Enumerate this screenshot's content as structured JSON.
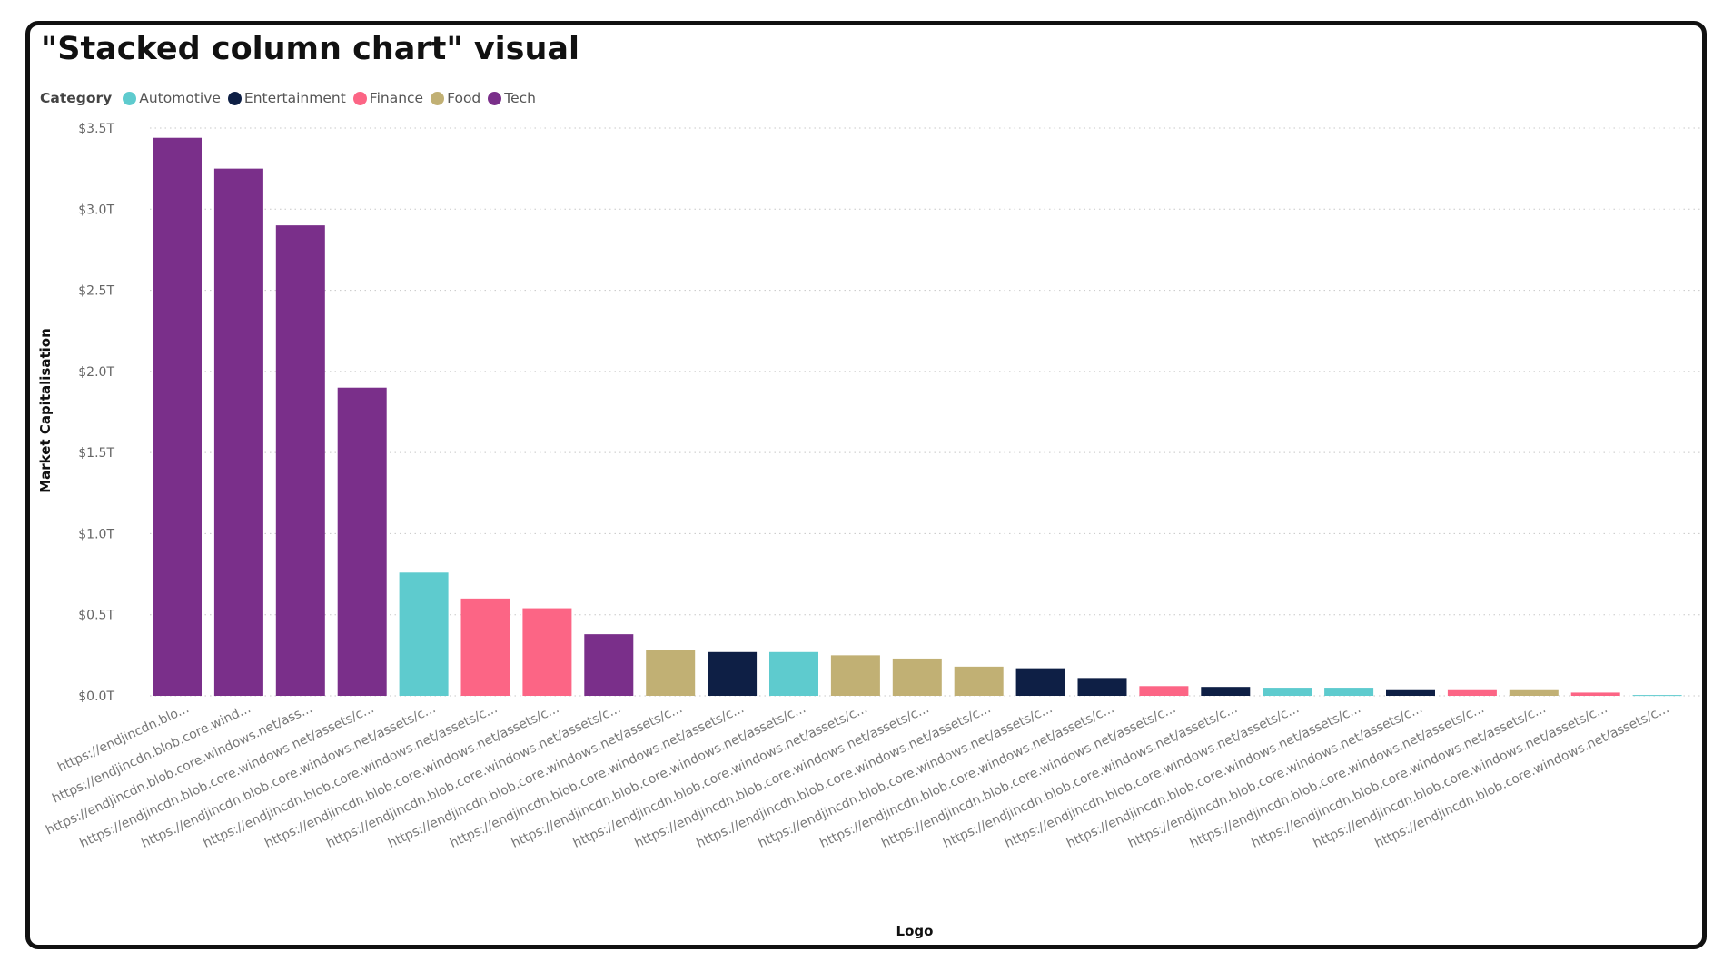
{
  "title": "\"Stacked column chart\" visual",
  "legend": {
    "title": "Category",
    "items": [
      {
        "name": "Automotive",
        "color": "#5ECBCE"
      },
      {
        "name": "Entertainment",
        "color": "#0E1F45"
      },
      {
        "name": "Finance",
        "color": "#FC6585"
      },
      {
        "name": "Food",
        "color": "#C1B074"
      },
      {
        "name": "Tech",
        "color": "#7A2F8A"
      }
    ]
  },
  "chart_data": {
    "type": "bar",
    "stacked": true,
    "xlabel": "Logo",
    "ylabel": "Market Capitalisation",
    "ylim": [
      0,
      3.5
    ],
    "y_ticks": [
      "$0.0T",
      "$0.5T",
      "$1.0T",
      "$1.5T",
      "$2.0T",
      "$2.5T",
      "$3.0T",
      "$3.5T"
    ],
    "grid": true,
    "legend_position": "top-left",
    "categories": [
      "https://endjincdn.blo...",
      "https://endjincdn.blob.core.wind...",
      "https://endjincdn.blob.core.windows.net/ass...",
      "https://endjincdn.blob.core.windows.net/assets/c...",
      "https://endjincdn.blob.core.windows.net/assets/c...",
      "https://endjincdn.blob.core.windows.net/assets/c...",
      "https://endjincdn.blob.core.windows.net/assets/c...",
      "https://endjincdn.blob.core.windows.net/assets/c...",
      "https://endjincdn.blob.core.windows.net/assets/c...",
      "https://endjincdn.blob.core.windows.net/assets/c...",
      "https://endjincdn.blob.core.windows.net/assets/c...",
      "https://endjincdn.blob.core.windows.net/assets/c...",
      "https://endjincdn.blob.core.windows.net/assets/c...",
      "https://endjincdn.blob.core.windows.net/assets/c...",
      "https://endjincdn.blob.core.windows.net/assets/c...",
      "https://endjincdn.blob.core.windows.net/assets/c...",
      "https://endjincdn.blob.core.windows.net/assets/c...",
      "https://endjincdn.blob.core.windows.net/assets/c...",
      "https://endjincdn.blob.core.windows.net/assets/c...",
      "https://endjincdn.blob.core.windows.net/assets/c...",
      "https://endjincdn.blob.core.windows.net/assets/c...",
      "https://endjincdn.blob.core.windows.net/assets/c...",
      "https://endjincdn.blob.core.windows.net/assets/c...",
      "https://endjincdn.blob.core.windows.net/assets/c...",
      "https://endjincdn.blob.core.windows.net/assets/c..."
    ],
    "bars": [
      {
        "category_index": 0,
        "series": "Tech",
        "value": 3.44
      },
      {
        "category_index": 1,
        "series": "Tech",
        "value": 3.25
      },
      {
        "category_index": 2,
        "series": "Tech",
        "value": 2.9
      },
      {
        "category_index": 3,
        "series": "Tech",
        "value": 1.9
      },
      {
        "category_index": 4,
        "series": "Automotive",
        "value": 0.76
      },
      {
        "category_index": 5,
        "series": "Finance",
        "value": 0.6
      },
      {
        "category_index": 6,
        "series": "Finance",
        "value": 0.54
      },
      {
        "category_index": 7,
        "series": "Tech",
        "value": 0.38
      },
      {
        "category_index": 8,
        "series": "Food",
        "value": 0.28
      },
      {
        "category_index": 9,
        "series": "Entertainment",
        "value": 0.27
      },
      {
        "category_index": 10,
        "series": "Automotive",
        "value": 0.27
      },
      {
        "category_index": 11,
        "series": "Food",
        "value": 0.25
      },
      {
        "category_index": 12,
        "series": "Food",
        "value": 0.23
      },
      {
        "category_index": 13,
        "series": "Food",
        "value": 0.18
      },
      {
        "category_index": 14,
        "series": "Entertainment",
        "value": 0.17
      },
      {
        "category_index": 15,
        "series": "Entertainment",
        "value": 0.11
      },
      {
        "category_index": 16,
        "series": "Finance",
        "value": 0.06
      },
      {
        "category_index": 17,
        "series": "Entertainment",
        "value": 0.055
      },
      {
        "category_index": 18,
        "series": "Automotive",
        "value": 0.05
      },
      {
        "category_index": 19,
        "series": "Automotive",
        "value": 0.05
      },
      {
        "category_index": 20,
        "series": "Entertainment",
        "value": 0.035
      },
      {
        "category_index": 21,
        "series": "Finance",
        "value": 0.035
      },
      {
        "category_index": 22,
        "series": "Food",
        "value": 0.035
      },
      {
        "category_index": 23,
        "series": "Finance",
        "value": 0.02
      },
      {
        "category_index": 24,
        "series": "Automotive",
        "value": 0.005
      }
    ]
  }
}
